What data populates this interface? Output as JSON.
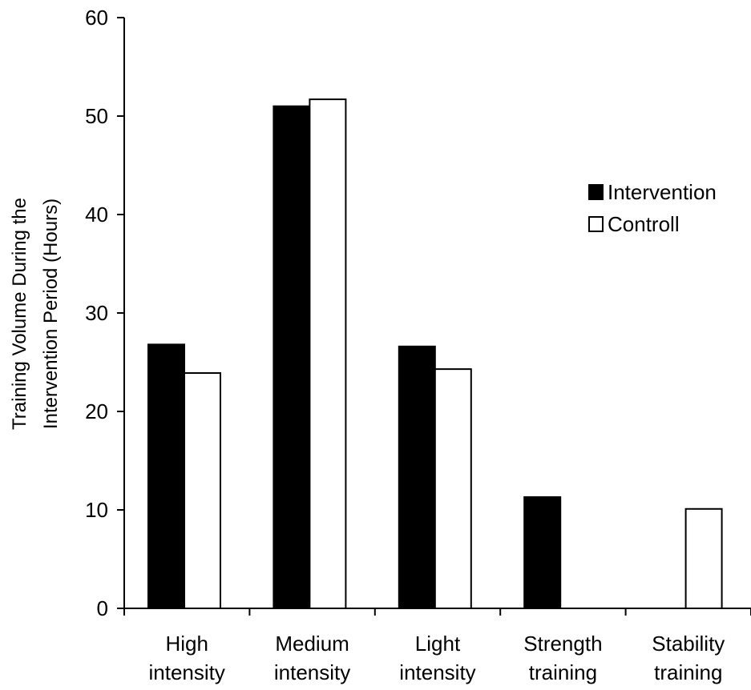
{
  "chart_data": {
    "type": "bar",
    "categories": [
      [
        "High",
        "intensity"
      ],
      [
        "Medium",
        "intensity"
      ],
      [
        "Light",
        "intensity"
      ],
      [
        "Strength",
        "training"
      ],
      [
        "Stability",
        "training"
      ]
    ],
    "series": [
      {
        "name": "Intervention",
        "color": "#000000",
        "values": [
          26.8,
          51.0,
          26.6,
          11.3,
          0
        ]
      },
      {
        "name": "Controll",
        "color": "#ffffff",
        "values": [
          23.9,
          51.7,
          24.3,
          0,
          10.1
        ]
      }
    ],
    "title": "",
    "xlabel": "",
    "ylabel": [
      "Training Volume During the",
      "Intervention Period (Hours)"
    ],
    "ylim": [
      0,
      60
    ],
    "yticks": [
      0,
      10,
      20,
      30,
      40,
      50,
      60
    ],
    "grid": false,
    "legend_position": "top-right"
  }
}
